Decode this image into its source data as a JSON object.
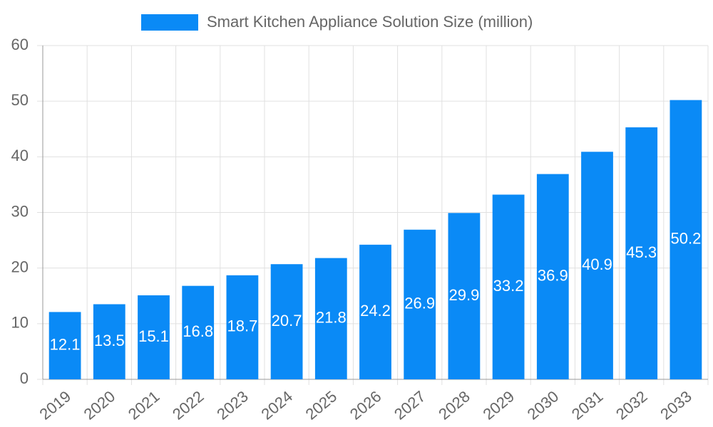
{
  "chart_data": {
    "type": "bar",
    "categories": [
      "2019",
      "2020",
      "2021",
      "2022",
      "2023",
      "2024",
      "2025",
      "2026",
      "2027",
      "2028",
      "2029",
      "2030",
      "2031",
      "2032",
      "2033"
    ],
    "series": [
      {
        "name": "Smart Kitchen Appliance Solution Size (million)",
        "color": "#0a8af6",
        "values": [
          12.1,
          13.5,
          15.1,
          16.8,
          18.7,
          20.7,
          21.8,
          24.2,
          26.9,
          29.9,
          33.2,
          36.9,
          40.9,
          45.3,
          50.2
        ]
      }
    ],
    "ylim": [
      0,
      60
    ],
    "yticks": [
      0,
      10,
      20,
      30,
      40,
      50,
      60
    ],
    "grid": true,
    "legend": "top"
  }
}
